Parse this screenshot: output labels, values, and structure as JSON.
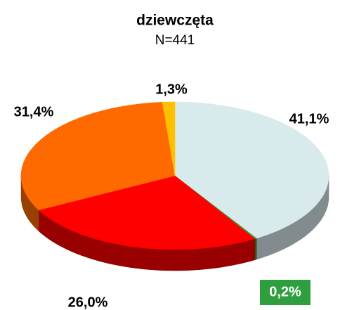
{
  "chart_data": {
    "type": "pie3d",
    "title": "dziewczęta",
    "subtitle": "N=441",
    "categories": [
      null,
      null,
      null,
      null,
      null
    ],
    "values": [
      41.1,
      0.2,
      26.0,
      31.4,
      1.3
    ],
    "value_labels": [
      "41,1%",
      "0,2%",
      "26,0%",
      "31,4%",
      "1,3%"
    ],
    "colors": [
      "#d9eaec",
      "#2e9e3e",
      "#ff0000",
      "#ff6a00",
      "#ffc000"
    ]
  }
}
